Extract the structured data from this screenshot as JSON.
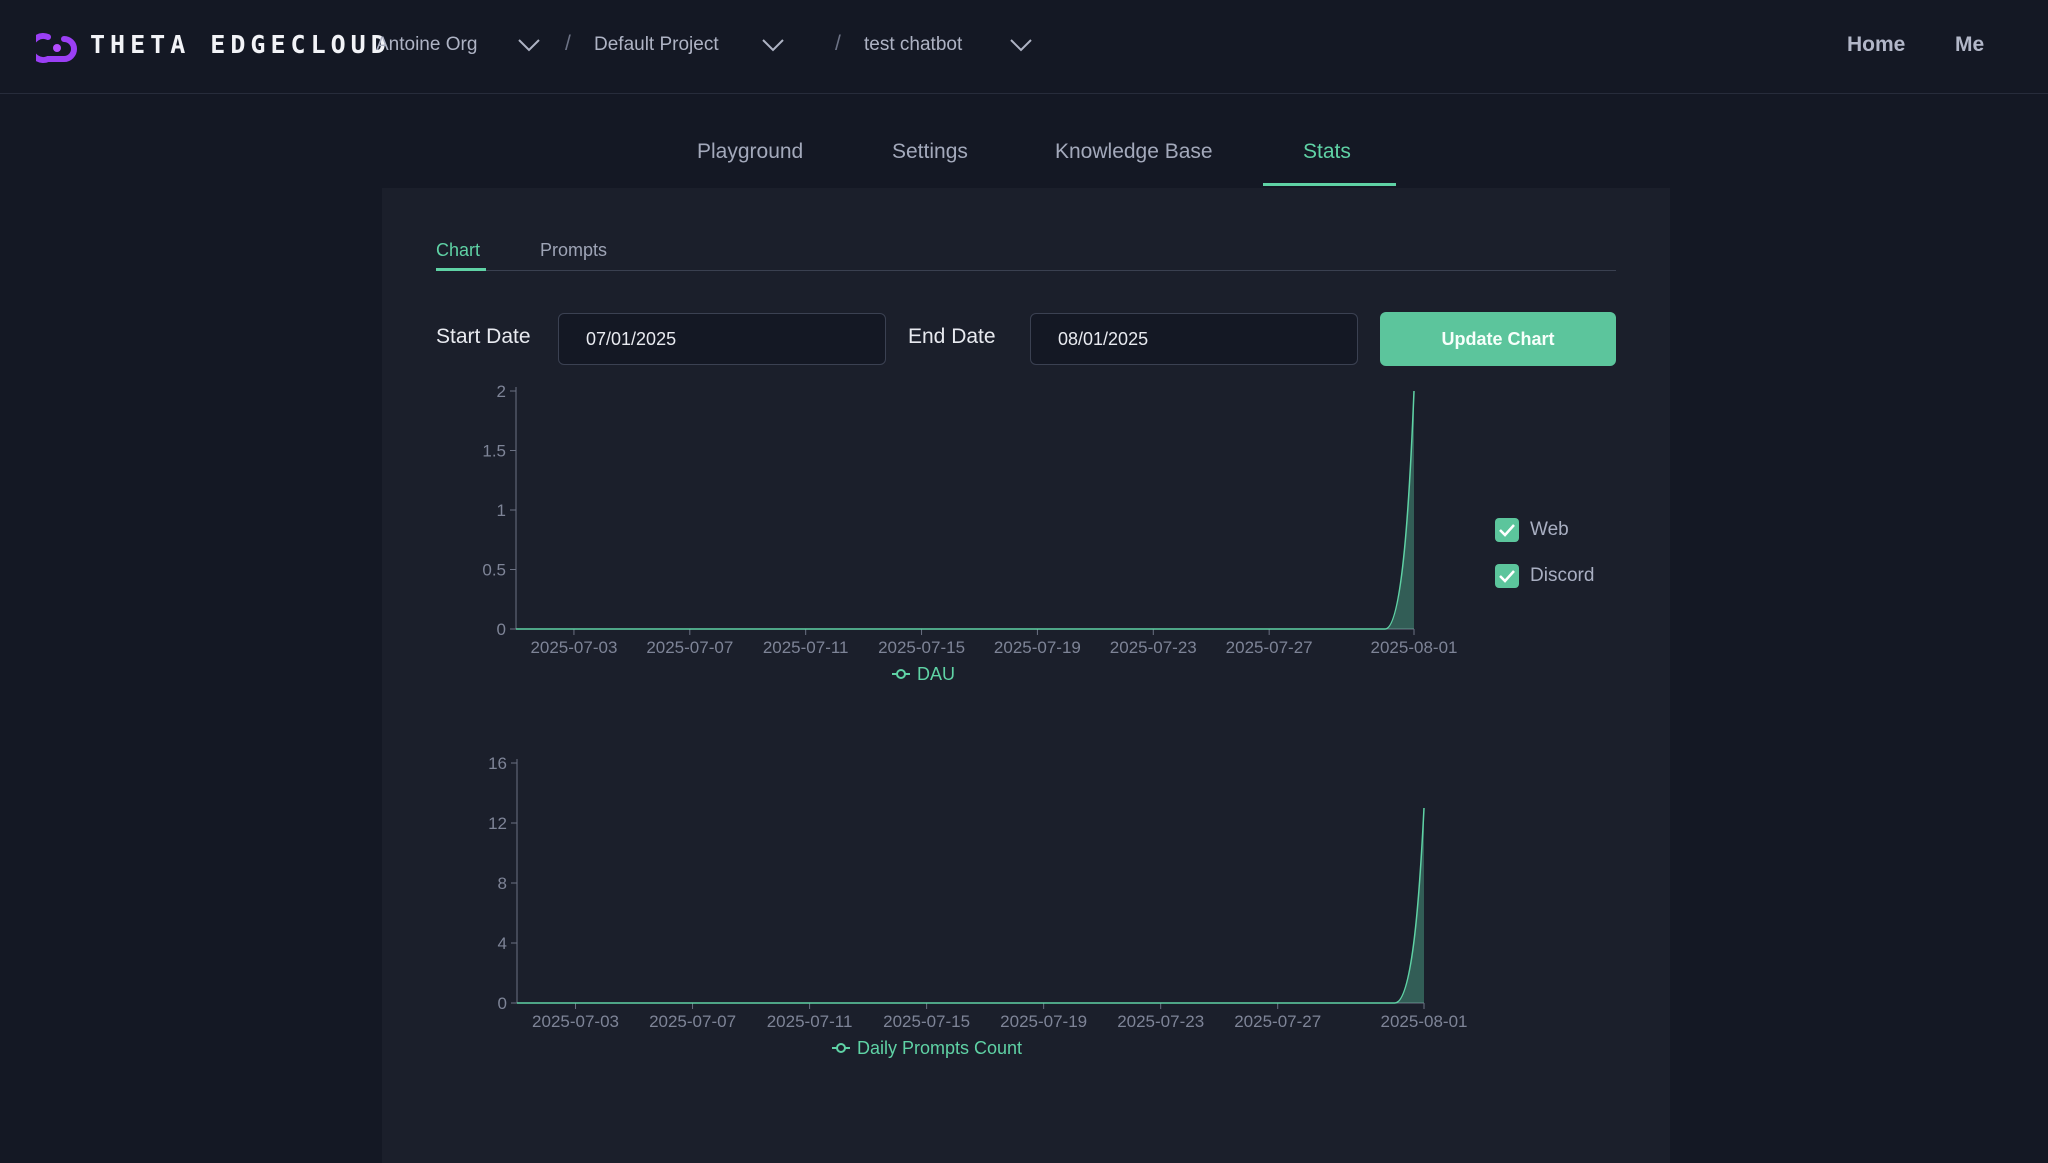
{
  "header": {
    "brand": "THETA EDGECLOUD",
    "breadcrumbs": [
      {
        "label": "Antoine Org"
      },
      {
        "label": "Default Project"
      },
      {
        "label": "test chatbot"
      }
    ],
    "separator": "/",
    "nav": {
      "home": "Home",
      "me": "Me"
    }
  },
  "tabs": [
    "Playground",
    "Settings",
    "Knowledge Base",
    "Stats"
  ],
  "active_tab": "Stats",
  "subtabs": [
    "Chart",
    "Prompts"
  ],
  "active_subtab": "Chart",
  "filters": {
    "start_label": "Start Date",
    "start_value": "07/01/2025",
    "end_label": "End Date",
    "end_value": "08/01/2025",
    "update_button": "Update Chart"
  },
  "legend_checkboxes": [
    {
      "label": "Web",
      "checked": true
    },
    {
      "label": "Discord",
      "checked": true
    }
  ],
  "colors": {
    "accent": "#5fd2a5",
    "background": "#141824",
    "panel": "#1b1f2b"
  },
  "chart_data": [
    {
      "type": "area",
      "x": [
        "2025-07-01",
        "2025-07-02",
        "2025-07-03",
        "2025-07-04",
        "2025-07-05",
        "2025-07-06",
        "2025-07-07",
        "2025-07-08",
        "2025-07-09",
        "2025-07-10",
        "2025-07-11",
        "2025-07-12",
        "2025-07-13",
        "2025-07-14",
        "2025-07-15",
        "2025-07-16",
        "2025-07-17",
        "2025-07-18",
        "2025-07-19",
        "2025-07-20",
        "2025-07-21",
        "2025-07-22",
        "2025-07-23",
        "2025-07-24",
        "2025-07-25",
        "2025-07-26",
        "2025-07-27",
        "2025-07-28",
        "2025-07-29",
        "2025-07-30",
        "2025-07-31",
        "2025-08-01"
      ],
      "x_tick_labels": [
        "2025-07-03",
        "2025-07-07",
        "2025-07-11",
        "2025-07-15",
        "2025-07-19",
        "2025-07-23",
        "2025-07-27",
        "2025-08-01"
      ],
      "series": [
        {
          "name": "DAU",
          "values": [
            0,
            0,
            0,
            0,
            0,
            0,
            0,
            0,
            0,
            0,
            0,
            0,
            0,
            0,
            0,
            0,
            0,
            0,
            0,
            0,
            0,
            0,
            0,
            0,
            0,
            0,
            0,
            0,
            0,
            0,
            0,
            2
          ]
        }
      ],
      "y_ticks": [
        "0",
        "0.5",
        "1",
        "1.5",
        "2"
      ],
      "ylim": [
        0,
        2
      ],
      "grid": false,
      "legend": "bottom-center"
    },
    {
      "type": "area",
      "x": [
        "2025-07-01",
        "2025-07-02",
        "2025-07-03",
        "2025-07-04",
        "2025-07-05",
        "2025-07-06",
        "2025-07-07",
        "2025-07-08",
        "2025-07-09",
        "2025-07-10",
        "2025-07-11",
        "2025-07-12",
        "2025-07-13",
        "2025-07-14",
        "2025-07-15",
        "2025-07-16",
        "2025-07-17",
        "2025-07-18",
        "2025-07-19",
        "2025-07-20",
        "2025-07-21",
        "2025-07-22",
        "2025-07-23",
        "2025-07-24",
        "2025-07-25",
        "2025-07-26",
        "2025-07-27",
        "2025-07-28",
        "2025-07-29",
        "2025-07-30",
        "2025-07-31",
        "2025-08-01"
      ],
      "x_tick_labels": [
        "2025-07-03",
        "2025-07-07",
        "2025-07-11",
        "2025-07-15",
        "2025-07-19",
        "2025-07-23",
        "2025-07-27",
        "2025-08-01"
      ],
      "series": [
        {
          "name": "Daily Prompts Count",
          "values": [
            0,
            0,
            0,
            0,
            0,
            0,
            0,
            0,
            0,
            0,
            0,
            0,
            0,
            0,
            0,
            0,
            0,
            0,
            0,
            0,
            0,
            0,
            0,
            0,
            0,
            0,
            0,
            0,
            0,
            0,
            0,
            13
          ]
        }
      ],
      "y_ticks": [
        "0",
        "4",
        "8",
        "12",
        "16"
      ],
      "ylim": [
        0,
        16
      ],
      "grid": false,
      "legend": "bottom-center"
    }
  ]
}
